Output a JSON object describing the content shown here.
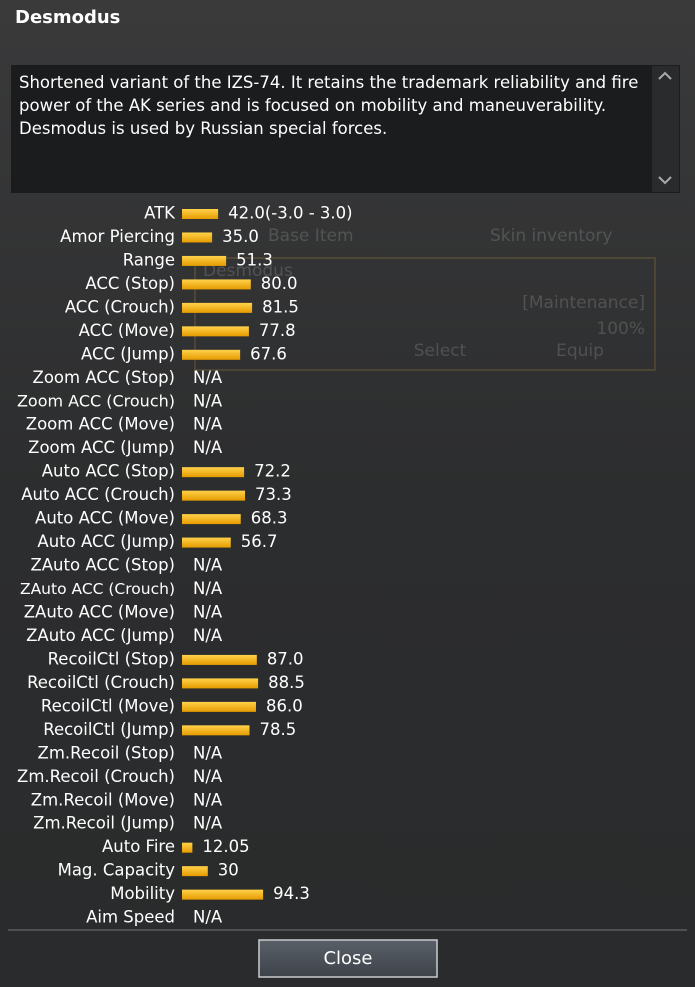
{
  "title": "Desmodus",
  "description": "Shortened variant of the IZS-74. It retains the trademark reliability and fire power of the AK series and is focused on mobility and maneuverability. Desmodus is used by Russian special forces.",
  "background": {
    "tabs": [
      "Base Item",
      "Skin inventory"
    ],
    "item_name": "Desmodus",
    "status": "[Maintenance]",
    "durability": "100%",
    "buttons": [
      "Select",
      "Equip"
    ]
  },
  "stats": [
    {
      "label": "ATK",
      "value": 42.0,
      "value_label": "42.0(-3.0 - 3.0)"
    },
    {
      "label": "Amor Piercing",
      "value": 35.0,
      "value_label": "35.0"
    },
    {
      "label": "Range",
      "value": 51.3,
      "value_label": "51.3"
    },
    {
      "label": "ACC (Stop)",
      "value": 80.0,
      "value_label": "80.0"
    },
    {
      "label": "ACC (Crouch)",
      "value": 81.5,
      "value_label": "81.5"
    },
    {
      "label": "ACC (Move)",
      "value": 77.8,
      "value_label": "77.8"
    },
    {
      "label": "ACC (Jump)",
      "value": 67.6,
      "value_label": "67.6"
    },
    {
      "label": "Zoom ACC (Stop)",
      "value": null,
      "value_label": "N/A"
    },
    {
      "label": "Zoom ACC (Crouch)",
      "value": null,
      "value_label": "N/A"
    },
    {
      "label": "Zoom ACC (Move)",
      "value": null,
      "value_label": "N/A"
    },
    {
      "label": "Zoom ACC (Jump)",
      "value": null,
      "value_label": "N/A"
    },
    {
      "label": "Auto ACC (Stop)",
      "value": 72.2,
      "value_label": "72.2"
    },
    {
      "label": "Auto ACC (Crouch)",
      "value": 73.3,
      "value_label": "73.3"
    },
    {
      "label": "Auto ACC (Move)",
      "value": 68.3,
      "value_label": "68.3"
    },
    {
      "label": "Auto ACC (Jump)",
      "value": 56.7,
      "value_label": "56.7"
    },
    {
      "label": "ZAuto ACC (Stop)",
      "value": null,
      "value_label": "N/A"
    },
    {
      "label": "ZAuto ACC (Crouch)",
      "value": null,
      "value_label": "N/A"
    },
    {
      "label": "ZAuto ACC (Move)",
      "value": null,
      "value_label": "N/A"
    },
    {
      "label": "ZAuto ACC (Jump)",
      "value": null,
      "value_label": "N/A"
    },
    {
      "label": "RecoilCtl (Stop)",
      "value": 87.0,
      "value_label": "87.0"
    },
    {
      "label": "RecoilCtl (Crouch)",
      "value": 88.5,
      "value_label": "88.5"
    },
    {
      "label": "RecoilCtl (Move)",
      "value": 86.0,
      "value_label": "86.0"
    },
    {
      "label": "RecoilCtl (Jump)",
      "value": 78.5,
      "value_label": "78.5"
    },
    {
      "label": "Zm.Recoil (Stop)",
      "value": null,
      "value_label": "N/A"
    },
    {
      "label": "Zm.Recoil (Crouch)",
      "value": null,
      "value_label": "N/A"
    },
    {
      "label": "Zm.Recoil (Move)",
      "value": null,
      "value_label": "N/A"
    },
    {
      "label": "Zm.Recoil (Jump)",
      "value": null,
      "value_label": "N/A"
    },
    {
      "label": "Auto Fire",
      "value": 12.05,
      "value_label": "12.05"
    },
    {
      "label": "Mag. Capacity",
      "value": 30,
      "value_label": "30"
    },
    {
      "label": "Mobility",
      "value": 94.3,
      "value_label": "94.3"
    },
    {
      "label": "Aim Speed",
      "value": null,
      "value_label": "N/A"
    }
  ],
  "close_button": "Close"
}
